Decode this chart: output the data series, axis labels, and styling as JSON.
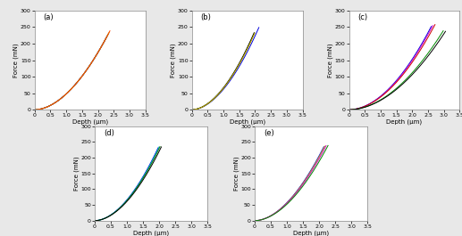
{
  "panels": [
    {
      "label": "(a)",
      "xlim": [
        0,
        3.5
      ],
      "ylim": [
        0,
        300
      ],
      "xticks": [
        0.0,
        0.5,
        1.0,
        1.5,
        2.0,
        2.5,
        3.0,
        3.5
      ],
      "yticks": [
        0,
        50,
        100,
        150,
        200,
        250,
        300
      ],
      "curves": [
        {
          "color": "#0000dd",
          "exponent": 1.85,
          "xmax": 2.28,
          "scale": 48.0
        },
        {
          "color": "#00aadd",
          "exponent": 1.85,
          "xmax": 2.3,
          "scale": 48.0
        },
        {
          "color": "#cc00cc",
          "exponent": 1.85,
          "xmax": 2.32,
          "scale": 48.0
        },
        {
          "color": "#008800",
          "exponent": 1.85,
          "xmax": 2.34,
          "scale": 48.0
        },
        {
          "color": "#ccaa00",
          "exponent": 1.85,
          "xmax": 2.36,
          "scale": 48.0
        },
        {
          "color": "#ff4400",
          "exponent": 1.85,
          "xmax": 2.38,
          "scale": 48.0
        }
      ]
    },
    {
      "label": "(b)",
      "xlim": [
        0,
        3.5
      ],
      "ylim": [
        0,
        300
      ],
      "xticks": [
        0.0,
        0.5,
        1.0,
        1.5,
        2.0,
        2.5,
        3.0,
        3.5
      ],
      "yticks": [
        0,
        50,
        100,
        150,
        200,
        250,
        300
      ],
      "curves": [
        {
          "color": "#0000dd",
          "exponent": 1.85,
          "xmax": 2.12,
          "scale": 62.0
        },
        {
          "color": "#008800",
          "exponent": 1.85,
          "xmax": 1.98,
          "scale": 65.5
        },
        {
          "color": "#000000",
          "exponent": 1.85,
          "xmax": 1.97,
          "scale": 66.5
        },
        {
          "color": "#ccaa00",
          "exponent": 1.85,
          "xmax": 1.99,
          "scale": 65.0
        }
      ]
    },
    {
      "label": "(c)",
      "xlim": [
        0,
        3.5
      ],
      "ylim": [
        0,
        300
      ],
      "xticks": [
        0.0,
        0.5,
        1.0,
        1.5,
        2.0,
        2.5,
        3.0,
        3.5
      ],
      "yticks": [
        0,
        50,
        100,
        150,
        200,
        250,
        300
      ],
      "curves": [
        {
          "color": "#0000dd",
          "exponent": 1.9,
          "xmax": 2.6,
          "scale": 41.0
        },
        {
          "color": "#cc00cc",
          "exponent": 1.9,
          "xmax": 2.65,
          "scale": 40.0
        },
        {
          "color": "#cc0000",
          "exponent": 1.9,
          "xmax": 2.72,
          "scale": 38.5
        },
        {
          "color": "#008800",
          "exponent": 1.9,
          "xmax": 2.98,
          "scale": 30.0
        },
        {
          "color": "#000000",
          "exponent": 1.9,
          "xmax": 3.05,
          "scale": 28.5
        }
      ]
    },
    {
      "label": "(d)",
      "xlim": [
        0,
        3.5
      ],
      "ylim": [
        0,
        300
      ],
      "xticks": [
        0.0,
        0.5,
        1.0,
        1.5,
        2.0,
        2.5,
        3.0,
        3.5
      ],
      "yticks": [
        0,
        50,
        100,
        150,
        200,
        250,
        300
      ],
      "curves": [
        {
          "color": "#0000dd",
          "exponent": 1.85,
          "xmax": 1.97,
          "scale": 66.0
        },
        {
          "color": "#00aadd",
          "exponent": 1.85,
          "xmax": 2.0,
          "scale": 65.0
        },
        {
          "color": "#008800",
          "exponent": 1.85,
          "xmax": 2.03,
          "scale": 63.5
        },
        {
          "color": "#000000",
          "exponent": 1.85,
          "xmax": 2.07,
          "scale": 61.0
        }
      ]
    },
    {
      "label": "(e)",
      "xlim": [
        0,
        3.5
      ],
      "ylim": [
        0,
        300
      ],
      "xticks": [
        0.0,
        0.5,
        1.0,
        1.5,
        2.0,
        2.5,
        3.0,
        3.5
      ],
      "yticks": [
        0,
        50,
        100,
        150,
        200,
        250,
        300
      ],
      "curves": [
        {
          "color": "#0000dd",
          "exponent": 1.85,
          "xmax": 2.15,
          "scale": 57.0
        },
        {
          "color": "#ccaa00",
          "exponent": 1.85,
          "xmax": 2.18,
          "scale": 56.0
        },
        {
          "color": "#cc00cc",
          "exponent": 1.85,
          "xmax": 2.22,
          "scale": 54.5
        },
        {
          "color": "#008800",
          "exponent": 1.85,
          "xmax": 2.28,
          "scale": 52.0
        }
      ]
    }
  ],
  "xlabel": "Depth (μm)",
  "ylabel": "Force (mN)",
  "figure_bg": "#e8e8e8",
  "panel_bg": "#ffffff"
}
